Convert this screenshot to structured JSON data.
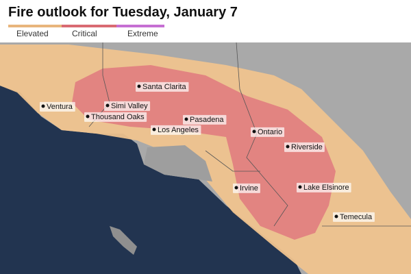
{
  "header": {
    "title": "Fire outlook for Tuesday, January 7"
  },
  "legend": [
    "Elevated",
    "Critical",
    "Extreme"
  ],
  "cities": [
    "Santa Clarita",
    "Ventura",
    "Simi Valley",
    "Thousand Oaks",
    "Pasadena",
    "Los Angeles",
    "Ontario",
    "Riverside",
    "Irvine",
    "Lake Elsinore",
    "Temecula"
  ]
}
